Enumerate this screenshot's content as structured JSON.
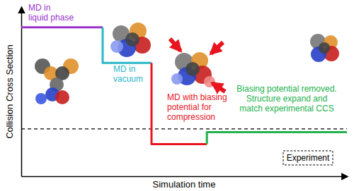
{
  "chart_data": {
    "type": "line",
    "xlabel": "Simulation time",
    "ylabel": "Collision Cross Section",
    "tick_labels": false,
    "xlim": [
      0,
      100
    ],
    "ylim": [
      0,
      100
    ],
    "x": [
      0,
      25,
      25,
      40,
      40,
      57,
      57,
      100
    ],
    "series": [
      {
        "color": "#9932cc",
        "values": [
          88,
          88,
          null,
          null,
          null,
          null,
          null,
          null
        ]
      },
      {
        "color": "#2ab6c8",
        "values": [
          null,
          88,
          67,
          67,
          null,
          null,
          null,
          null
        ]
      },
      {
        "color": "#e8141e",
        "values": [
          null,
          null,
          null,
          67,
          19,
          19,
          null,
          null
        ]
      },
      {
        "color": "#22b14c",
        "values": [
          null,
          null,
          null,
          null,
          null,
          19,
          26,
          26
        ]
      }
    ],
    "experiment": {
      "y": 28,
      "label": "Experiment",
      "line_style": "dashed"
    },
    "annotations": [
      {
        "lines": [
          "MD in",
          "liquid phase"
        ],
        "color": "#9932cc"
      },
      {
        "lines": [
          "MD in",
          "vacuum"
        ],
        "color": "#2ab6c8"
      },
      {
        "lines": [
          "MD with biasing",
          "potential for",
          "compression"
        ],
        "color": "#e8141e"
      },
      {
        "lines": [
          "Biasing potential removed.",
          "Structure expand and",
          "match experimental CCS"
        ],
        "color": "#22b14c"
      }
    ]
  }
}
